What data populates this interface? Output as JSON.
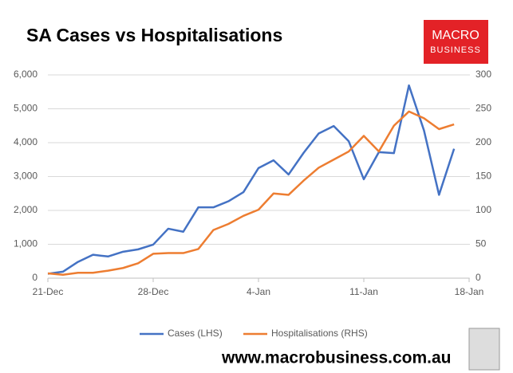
{
  "chart_data": {
    "type": "line",
    "title": "SA Cases vs Hospitalisations",
    "logo": [
      "MACRO",
      "BUSINESS"
    ],
    "footer": "www.macrobusiness.com.au",
    "x": [
      0,
      1,
      2,
      3,
      4,
      5,
      6,
      7,
      8,
      9,
      10,
      11,
      12,
      13,
      14,
      15,
      16,
      17,
      18,
      19,
      20,
      21,
      22,
      23,
      24,
      25,
      26,
      27
    ],
    "xlim": [
      0,
      28
    ],
    "xticks": [
      {
        "value": 0,
        "label": "21-Dec"
      },
      {
        "value": 7,
        "label": "28-Dec"
      },
      {
        "value": 14,
        "label": "4-Jan"
      },
      {
        "value": 21,
        "label": "11-Jan"
      },
      {
        "value": 28,
        "label": "18-Jan"
      }
    ],
    "ylim": [
      0,
      6000
    ],
    "yticks": [
      0,
      {
        "value": 1000,
        "label": "1,000"
      },
      {
        "value": 2000,
        "label": "2,000"
      },
      {
        "value": 3000,
        "label": "3,000"
      },
      {
        "value": 4000,
        "label": "4,000"
      },
      {
        "value": 5000,
        "label": "5,000"
      },
      {
        "value": 6000,
        "label": "6,000"
      }
    ],
    "y2lim": [
      0,
      300
    ],
    "y2ticks": [
      0,
      50,
      100,
      150,
      200,
      250,
      300
    ],
    "grid": true,
    "legend": "bottom",
    "series": [
      {
        "name": "Cases (LHS)",
        "color": "#4472c4",
        "values": [
          130,
          190,
          480,
          690,
          640,
          780,
          850,
          990,
          1460,
          1370,
          2090,
          2090,
          2270,
          2540,
          3250,
          3480,
          3060,
          3700,
          4270,
          4490,
          4040,
          2920,
          3720,
          3690,
          5690,
          4360,
          2460,
          3820
        ]
      },
      {
        "name": "Hospitalisations (RHS)",
        "color": "#ed7d31",
        "axis": "y2",
        "values": [
          7,
          5,
          8,
          8,
          11,
          15,
          22,
          36,
          37,
          37,
          43,
          71,
          80,
          92,
          101,
          125,
          123,
          144,
          163,
          175,
          187,
          210,
          187,
          225,
          246,
          236,
          220,
          227
        ]
      }
    ]
  }
}
